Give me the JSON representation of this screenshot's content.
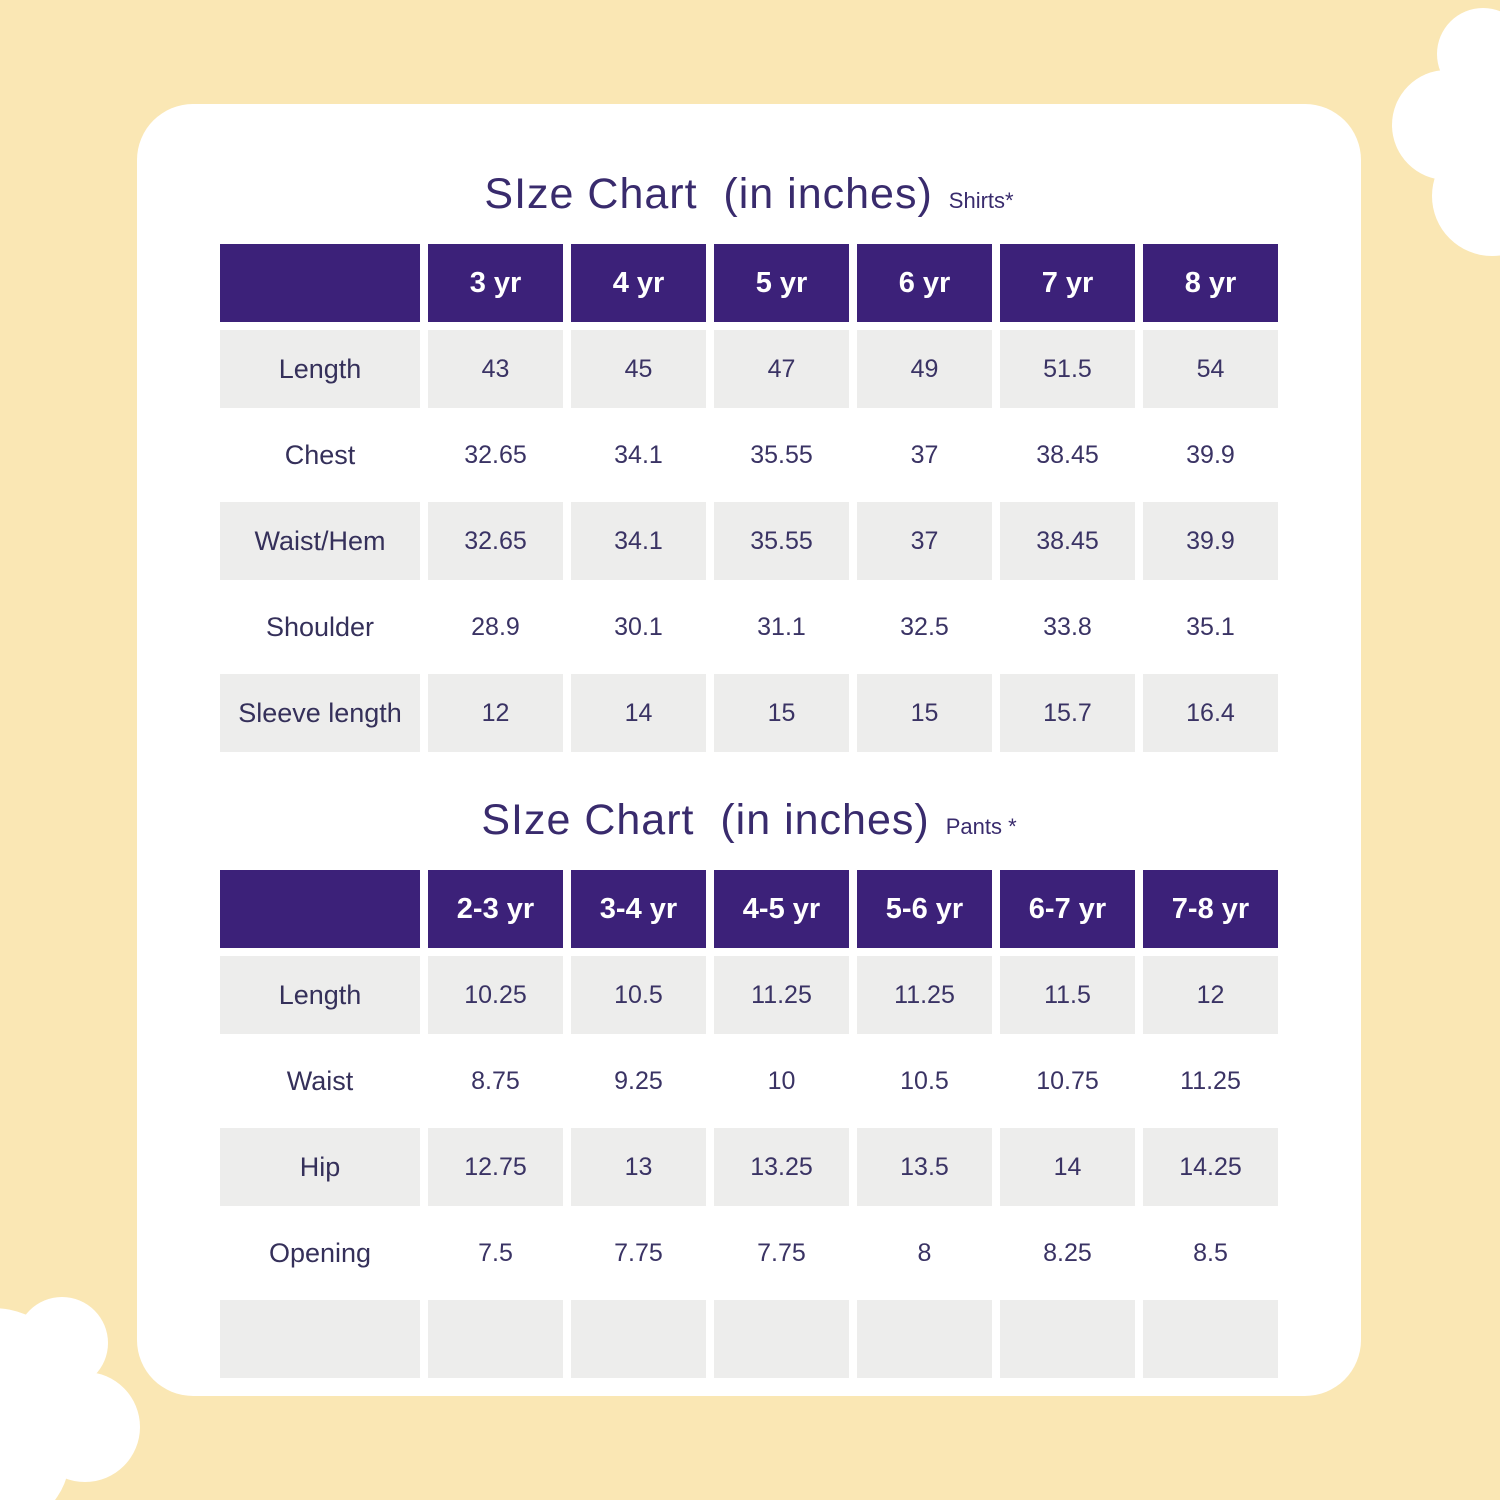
{
  "page": {
    "background_color": "#FAE7B4",
    "card_color": "#FFFFFF",
    "accent_color": "#3C2179",
    "shaded_cell_color": "#EDEDEC",
    "text_color": "#3A3364"
  },
  "shirts": {
    "title": "SIze Chart  (in inches)",
    "subtitle": "Shirts*",
    "columns": [
      "3 yr",
      "4 yr",
      "5 yr",
      "6 yr",
      "7 yr",
      "8 yr"
    ],
    "rows": [
      {
        "label": "Length",
        "shaded": true,
        "values": [
          "43",
          "45",
          "47",
          "49",
          "51.5",
          "54"
        ]
      },
      {
        "label": "Chest",
        "shaded": false,
        "values": [
          "32.65",
          "34.1",
          "35.55",
          "37",
          "38.45",
          "39.9"
        ]
      },
      {
        "label": "Waist/Hem",
        "shaded": true,
        "values": [
          "32.65",
          "34.1",
          "35.55",
          "37",
          "38.45",
          "39.9"
        ]
      },
      {
        "label": "Shoulder",
        "shaded": false,
        "values": [
          "28.9",
          "30.1",
          "31.1",
          "32.5",
          "33.8",
          "35.1"
        ]
      },
      {
        "label": "Sleeve length",
        "shaded": true,
        "values": [
          "12",
          "14",
          "15",
          "15",
          "15.7",
          "16.4"
        ]
      }
    ]
  },
  "pants": {
    "title": "SIze Chart  (in inches)",
    "subtitle": "Pants *",
    "columns": [
      "2-3 yr",
      "3-4 yr",
      "4-5 yr",
      "5-6 yr",
      "6-7 yr",
      "7-8 yr"
    ],
    "rows": [
      {
        "label": "Length",
        "shaded": true,
        "values": [
          "10.25",
          "10.5",
          "11.25",
          "11.25",
          "11.5",
          "12"
        ]
      },
      {
        "label": "Waist",
        "shaded": false,
        "values": [
          "8.75",
          "9.25",
          "10",
          "10.5",
          "10.75",
          "11.25"
        ]
      },
      {
        "label": "Hip",
        "shaded": true,
        "values": [
          "12.75",
          "13",
          "13.25",
          "13.5",
          "14",
          "14.25"
        ]
      },
      {
        "label": "Opening",
        "shaded": false,
        "values": [
          "7.5",
          "7.75",
          "7.75",
          "8",
          "8.25",
          "8.5"
        ]
      },
      {
        "label": "",
        "shaded": true,
        "values": [
          "",
          "",
          "",
          "",
          "",
          ""
        ]
      }
    ]
  },
  "chart_data": [
    {
      "type": "table",
      "title": "SIze Chart (in inches) Shirts*",
      "columns": [
        "",
        "3 yr",
        "4 yr",
        "5 yr",
        "6 yr",
        "7 yr",
        "8 yr"
      ],
      "rows": [
        [
          "Length",
          43,
          45,
          47,
          49,
          51.5,
          54
        ],
        [
          "Chest",
          32.65,
          34.1,
          35.55,
          37,
          38.45,
          39.9
        ],
        [
          "Waist/Hem",
          32.65,
          34.1,
          35.55,
          37,
          38.45,
          39.9
        ],
        [
          "Shoulder",
          28.9,
          30.1,
          31.1,
          32.5,
          33.8,
          35.1
        ],
        [
          "Sleeve length",
          12,
          14,
          15,
          15,
          15.7,
          16.4
        ]
      ]
    },
    {
      "type": "table",
      "title": "SIze Chart (in inches) Pants *",
      "columns": [
        "",
        "2-3 yr",
        "3-4 yr",
        "4-5 yr",
        "5-6 yr",
        "6-7 yr",
        "7-8 yr"
      ],
      "rows": [
        [
          "Length",
          10.25,
          10.5,
          11.25,
          11.25,
          11.5,
          12
        ],
        [
          "Waist",
          8.75,
          9.25,
          10,
          10.5,
          10.75,
          11.25
        ],
        [
          "Hip",
          12.75,
          13,
          13.25,
          13.5,
          14,
          14.25
        ],
        [
          "Opening",
          7.5,
          7.75,
          7.75,
          8,
          8.25,
          8.5
        ]
      ]
    }
  ]
}
